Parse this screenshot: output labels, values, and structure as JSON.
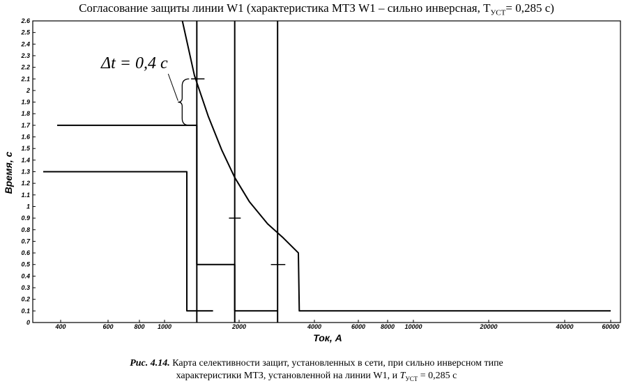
{
  "title": {
    "main": "Согласование защиты линии W1 (характеристика МТЗ W1 – сильно инверсная, T",
    "sub": "УСТ",
    "end": "= 0,285 с)"
  },
  "caption": {
    "fig_label": "Рис. 4.14.",
    "line1_text": " Карта селективности защит, установленных в сети, при сильно инверсном типе",
    "line2_text": "характеристики МТЗ, установленной на линии W1, и ",
    "t_symbol": "T",
    "t_sub": "УСТ",
    "t_value": " = 0,285 с"
  },
  "chart_data": {
    "type": "line",
    "title": "",
    "xlabel": "Ток, А",
    "ylabel": "Время, с",
    "x_scale": "log",
    "x_ticks": [
      400,
      600,
      800,
      1000,
      2000,
      4000,
      6000,
      8000,
      10000,
      20000,
      40000,
      60000
    ],
    "x_tick_labels": [
      "400",
      "600",
      "800",
      "1000",
      "2000",
      "4000",
      "6000",
      "8000",
      "10000",
      "20000",
      "40000",
      "60000"
    ],
    "y_ticks": [
      0,
      0.1,
      0.2,
      0.3,
      0.4,
      0.5,
      0.6,
      0.7,
      0.8,
      0.9,
      1,
      1.1,
      1.2,
      1.3,
      1.4,
      1.5,
      1.6,
      1.7,
      1.8,
      1.9,
      2,
      2.1,
      2.2,
      2.3,
      2.4,
      2.5,
      2.6
    ],
    "y_tick_labels": [
      "0",
      "0.1",
      "0.2",
      "0.3",
      "0.4",
      "0.5",
      "0.6",
      "0.7",
      "0.8",
      "0.9",
      "1",
      "1.1",
      "1.2",
      "1.3",
      "1.4",
      "1.5",
      "1.6",
      "1.7",
      "1.8",
      "1.9",
      "2",
      "2.1",
      "2.2",
      "2.3",
      "2.4",
      "2.5",
      "2.6"
    ],
    "ylim": [
      0,
      2.6
    ],
    "grid": false,
    "legend": "none",
    "series": [
      {
        "x": [
          330,
          1230,
          1230,
          1570
        ],
        "y": [
          1.3,
          1.3,
          0.1,
          0.1
        ]
      },
      {
        "x": [
          385,
          1350,
          1350,
          1920,
          1920
        ],
        "y": [
          1.7,
          1.7,
          0.5,
          0.5,
          0.1
        ]
      },
      {
        "x": [
          1920,
          2850
        ],
        "y": [
          0.1,
          0.1
        ]
      },
      {
        "x": [
          1180,
          1320,
          1500,
          1700,
          1920,
          2200,
          2600,
          3000,
          3450,
          3450,
          3480,
          60000
        ],
        "y": [
          2.6,
          2.13,
          1.78,
          1.49,
          1.25,
          1.04,
          0.85,
          0.73,
          0.6,
          0.6,
          0.1,
          0.1
        ]
      }
    ],
    "vertical_lines": [
      1350,
      1920,
      2850
    ],
    "markers": [
      {
        "x_from": 1280,
        "x_to": 1450,
        "y": 2.1
      },
      {
        "x_from": 1820,
        "x_to": 2030,
        "y": 0.9
      },
      {
        "x_from": 2680,
        "x_to": 3060,
        "y": 0.5
      }
    ],
    "annotation": {
      "text": "Δt = 0,4 с",
      "from_y": 1.7,
      "to_y": 2.1,
      "x": 1290
    }
  }
}
